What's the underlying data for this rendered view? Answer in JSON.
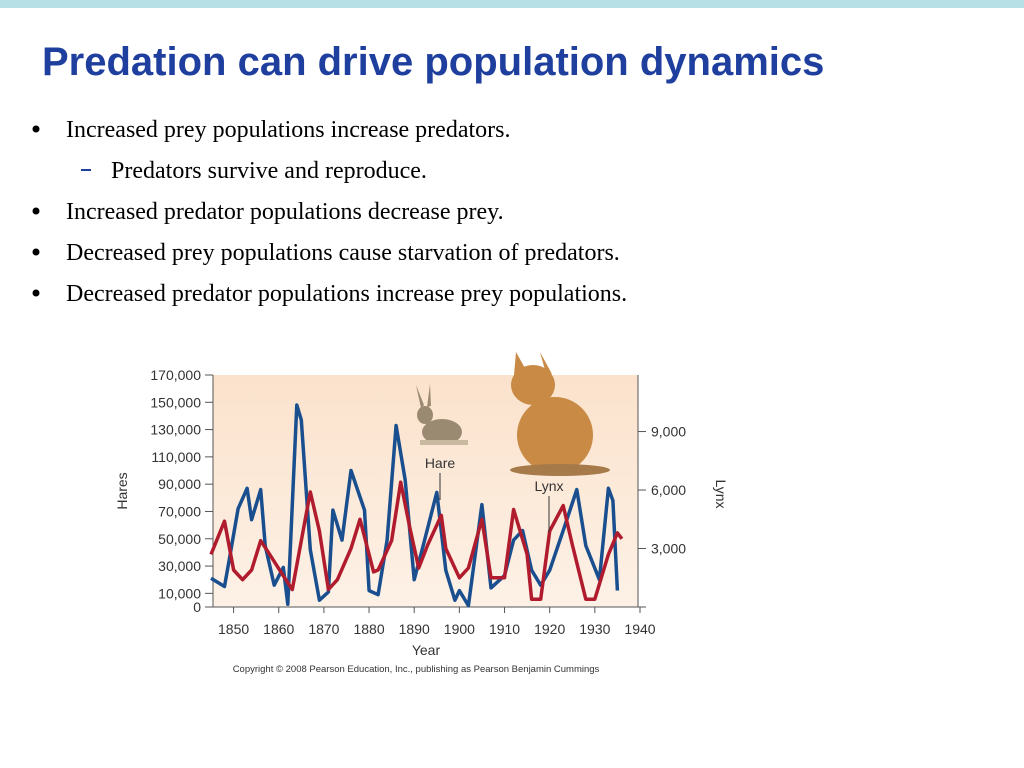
{
  "slide": {
    "title": "Predation can drive population dynamics",
    "bullets": [
      {
        "text": "Increased prey populations increase predators.",
        "level": 1
      },
      {
        "text": "Predators survive and reproduce.",
        "level": 2
      },
      {
        "text": "Increased predator populations decrease prey.",
        "level": 1
      },
      {
        "text": "Decreased prey populations cause starvation of predators.",
        "level": 1
      },
      {
        "text": "Decreased predator populations increase prey populations.",
        "level": 1
      }
    ]
  },
  "chart_data": {
    "type": "line",
    "xlabel": "Year",
    "ylabel": "Hares",
    "y2label": "Lynx",
    "copyright": "Copyright © 2008 Pearson Education, Inc., publishing as Pearson Benjamin Cummings",
    "xlim": [
      1845,
      1940
    ],
    "xticks": [
      1850,
      1860,
      1870,
      1880,
      1890,
      1900,
      1910,
      1920,
      1930,
      1940
    ],
    "ylim": [
      0,
      170000
    ],
    "yticks": [
      0,
      {
        "value": 10000,
        "label": "10,000"
      },
      {
        "value": 30000,
        "label": "30,000"
      },
      {
        "value": 50000,
        "label": "50,000"
      },
      {
        "value": 70000,
        "label": "70,000"
      },
      {
        "value": 90000,
        "label": "90,000"
      },
      {
        "value": 110000,
        "label": "110,000"
      },
      {
        "value": 130000,
        "label": "130,000"
      },
      {
        "value": 150000,
        "label": "150,000"
      },
      {
        "value": 170000,
        "label": "170,000"
      }
    ],
    "y2lim": [
      0,
      11900
    ],
    "y2ticks": [
      {
        "value": 3000,
        "label": "3,000"
      },
      {
        "value": 6000,
        "label": "6,000"
      },
      {
        "value": 9000,
        "label": "9,000"
      }
    ],
    "series": [
      {
        "name": "Hare",
        "color": "#1a4f8f",
        "x": [
          1845,
          1848,
          1849,
          1851,
          1853,
          1854,
          1856,
          1857,
          1859,
          1861,
          1862,
          1864,
          1865,
          1867,
          1869,
          1871,
          1872,
          1874,
          1876,
          1879,
          1880,
          1882,
          1884,
          1886,
          1888,
          1890,
          1892,
          1895,
          1897,
          1899,
          1900,
          1902,
          1905,
          1907,
          1910,
          1912,
          1914,
          1916,
          1918,
          1920,
          1923,
          1926,
          1928,
          1931,
          1933,
          1934,
          1935
        ],
        "values": [
          21000,
          15000,
          34000,
          72000,
          87000,
          64000,
          86000,
          45000,
          16000,
          29000,
          2000,
          148000,
          137000,
          42000,
          5000,
          11000,
          71000,
          49000,
          100000,
          71000,
          12000,
          9000,
          49000,
          133000,
          93000,
          20000,
          45000,
          84000,
          27000,
          5000,
          12000,
          1000,
          75000,
          14000,
          23000,
          49000,
          56000,
          27000,
          16000,
          27000,
          56000,
          86000,
          45000,
          20000,
          87000,
          78000,
          12000
        ]
      },
      {
        "name": "Lynx",
        "color": "#b01c2e",
        "axis": "y2",
        "x": [
          1845,
          1848,
          1850,
          1852,
          1854,
          1856,
          1858,
          1861,
          1863,
          1865,
          1867,
          1869,
          1871,
          1873,
          1876,
          1878,
          1881,
          1882,
          1885,
          1887,
          1889,
          1891,
          1893,
          1896,
          1897,
          1900,
          1902,
          1905,
          1907,
          1910,
          1912,
          1915,
          1916,
          1918,
          1920,
          1923,
          1925,
          1928,
          1930,
          1933,
          1935,
          1936
        ],
        "values": [
          2700,
          4400,
          1900,
          1400,
          1900,
          3400,
          2700,
          1600,
          900,
          3400,
          5900,
          3900,
          900,
          1400,
          3000,
          4500,
          1800,
          1900,
          3400,
          6400,
          4100,
          2000,
          3200,
          4700,
          3000,
          1500,
          2000,
          4500,
          1500,
          1500,
          5000,
          2700,
          400,
          400,
          3900,
          5200,
          3200,
          400,
          400,
          2700,
          3800,
          3500
        ]
      }
    ]
  }
}
